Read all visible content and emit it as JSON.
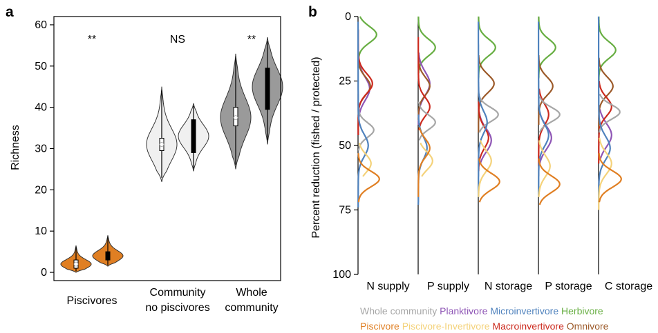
{
  "colors": {
    "whole": "#a6a6a6",
    "planktivore": "#8e55b5",
    "microinvertivore": "#4f82bd",
    "herbivore": "#67ae42",
    "piscivore": "#e07f23",
    "piscivore_invertivore": "#f4d27a",
    "macroinvertivore": "#cc2a1e",
    "omnivore": "#9c5a2a",
    "violin_piscivores": "#e07f23",
    "violin_nopisc": "#f0f0f0",
    "violin_whole": "#9a9a9a",
    "sig_orange": "#e89a3c"
  },
  "chart_data": [
    {
      "panel": "a",
      "type": "violin",
      "ylabel": "Richness",
      "ylim": [
        -2,
        62
      ],
      "yticks": [
        0,
        10,
        20,
        30,
        40,
        50,
        60
      ],
      "groups": [
        {
          "label": "Piscivores",
          "significance": "**",
          "sig_color": "#e89a3c",
          "violins": [
            {
              "condition": "fished",
              "min": 0,
              "q1": 1,
              "median": 2,
              "q3": 3,
              "max": 6.5,
              "color": "#e07f23"
            },
            {
              "condition": "protected",
              "min": 1.5,
              "q1": 3,
              "median": 4,
              "q3": 5,
              "max": 9,
              "color": "#e07f23"
            }
          ]
        },
        {
          "label": "Community no piscivores",
          "significance": "NS",
          "sig_color": "#000000",
          "violins": [
            {
              "condition": "fished",
              "min": 22,
              "q1": 29.5,
              "median": 31,
              "q3": 32.5,
              "max": 45,
              "color": "#f0f0f0"
            },
            {
              "condition": "protected",
              "min": 24.5,
              "q1": 29,
              "median": 33,
              "q3": 37,
              "max": 41,
              "color": "#f0f0f0"
            }
          ]
        },
        {
          "label": "Whole community",
          "significance": "**",
          "sig_color": "#000000",
          "violins": [
            {
              "condition": "fished",
              "min": 25,
              "q1": 35.5,
              "median": 37.5,
              "q3": 40,
              "max": 53,
              "color": "#9a9a9a"
            },
            {
              "condition": "protected",
              "min": 31,
              "q1": 39.5,
              "median": 45,
              "q3": 49.5,
              "max": 57,
              "color": "#9a9a9a"
            }
          ]
        }
      ]
    },
    {
      "panel": "b",
      "type": "density",
      "ylabel": "Percent reduction (fished / protected)",
      "ylim": [
        0,
        100
      ],
      "yticks": [
        0,
        25,
        50,
        75,
        100
      ],
      "columns": [
        "N supply",
        "P supply",
        "N storage",
        "P storage",
        "C storage"
      ],
      "legend": {
        "row1": [
          {
            "label": "Whole community",
            "key": "whole"
          },
          {
            "label": "Planktivore",
            "key": "planktivore"
          },
          {
            "label": "Microinvertivore",
            "key": "microinvertivore"
          },
          {
            "label": "Herbivore",
            "key": "herbivore"
          }
        ],
        "row2": [
          {
            "label": "Piscivore",
            "key": "piscivore"
          },
          {
            "label": "Piscivore-Invertivore",
            "key": "piscivore_invertivore"
          },
          {
            "label": "Macroinvertivore",
            "key": "macroinvertivore"
          },
          {
            "label": "Omnivore",
            "key": "omnivore"
          }
        ]
      },
      "series": [
        {
          "key": "herbivore",
          "modes": [
            [
              7,
              26
            ],
            [
              12,
              24
            ],
            [
              12,
              24
            ],
            [
              12,
              24
            ],
            [
              13,
              24
            ]
          ],
          "sd": [
            3.2,
            3.2,
            3.2,
            3.2,
            3.2
          ],
          "range": [
            [
              0,
              20
            ],
            [
              0,
              22
            ],
            [
              0,
              24
            ],
            [
              0,
              24
            ],
            [
              0,
              25
            ]
          ]
        },
        {
          "key": "planktivore",
          "modes": [
            [
              28,
              16
            ],
            [
              26,
              16
            ],
            [
              48,
              18
            ],
            [
              47,
              18
            ],
            [
              46,
              18
            ]
          ],
          "sd": [
            4.5,
            4.5,
            4.5,
            4.5,
            4.5
          ],
          "range": [
            [
              16,
              46
            ],
            [
              14,
              42
            ],
            [
              37,
              57
            ],
            [
              37,
              57
            ],
            [
              36,
              55
            ]
          ]
        },
        {
          "key": "omnivore",
          "modes": [
            [
              27,
              17
            ],
            [
              27,
              16
            ],
            [
              26,
              22
            ],
            [
              27,
              20
            ],
            [
              27,
              20
            ]
          ],
          "sd": [
            3.5,
            3.5,
            3.5,
            3.5,
            3.5
          ],
          "range": [
            [
              15,
              44
            ],
            [
              16,
              40
            ],
            [
              15,
              45
            ],
            [
              15,
              42
            ],
            [
              16,
              44
            ]
          ]
        },
        {
          "key": "macroinvertivore",
          "modes": [
            [
              26,
              20
            ],
            [
              35,
              16
            ],
            [
              47,
              14
            ],
            [
              38,
              14
            ],
            [
              35,
              18
            ]
          ],
          "sd": [
            3.8,
            3.6,
            4.0,
            4.0,
            3.6
          ],
          "range": [
            [
              5,
              46
            ],
            [
              8,
              44
            ],
            [
              33,
              60
            ],
            [
              28,
              58
            ],
            [
              25,
              57
            ]
          ]
        },
        {
          "key": "whole",
          "modes": [
            [
              44,
              22
            ],
            [
              41,
              24
            ],
            [
              38,
              28
            ],
            [
              38,
              30
            ],
            [
              37,
              30
            ]
          ],
          "sd": [
            2.8,
            2.8,
            2.8,
            2.8,
            2.8
          ],
          "range": [
            [
              30,
              52
            ],
            [
              33,
              48
            ],
            [
              30,
              45
            ],
            [
              31,
              45
            ],
            [
              30,
              45
            ]
          ]
        },
        {
          "key": "microinvertivore",
          "modes": [
            [
              50,
              14
            ],
            [
              51,
              12
            ],
            [
              41,
              12
            ],
            [
              46,
              14
            ],
            [
              51,
              16
            ]
          ],
          "sd": [
            4.2,
            4.2,
            4.2,
            4.2,
            4.5
          ],
          "range": [
            [
              2,
              74
            ],
            [
              38,
              73
            ],
            [
              2,
              70
            ],
            [
              2,
              69
            ],
            [
              0,
              72
            ]
          ]
        },
        {
          "key": "piscivore_invertivore",
          "modes": [
            [
              57,
              18
            ],
            [
              56,
              20
            ],
            [
              56,
              18
            ],
            [
              58,
              16
            ],
            [
              57,
              18
            ]
          ],
          "sd": [
            3.5,
            3.5,
            4.0,
            4.0,
            4.0
          ],
          "range": [
            [
              49,
              62
            ],
            [
              49,
              62
            ],
            [
              48,
              70
            ],
            [
              48,
              70
            ],
            [
              47,
              75
            ]
          ]
        },
        {
          "key": "piscivore",
          "modes": [
            [
              63,
              30
            ],
            [
              51,
              16
            ],
            [
              64,
              30
            ],
            [
              65,
              30
            ],
            [
              63,
              32
            ]
          ],
          "sd": [
            3.0,
            3.6,
            3.2,
            3.2,
            3.2
          ],
          "range": [
            [
              53,
              72
            ],
            [
              43,
              70
            ],
            [
              55,
              72
            ],
            [
              55,
              73
            ],
            [
              53,
              72
            ]
          ]
        }
      ]
    }
  ]
}
